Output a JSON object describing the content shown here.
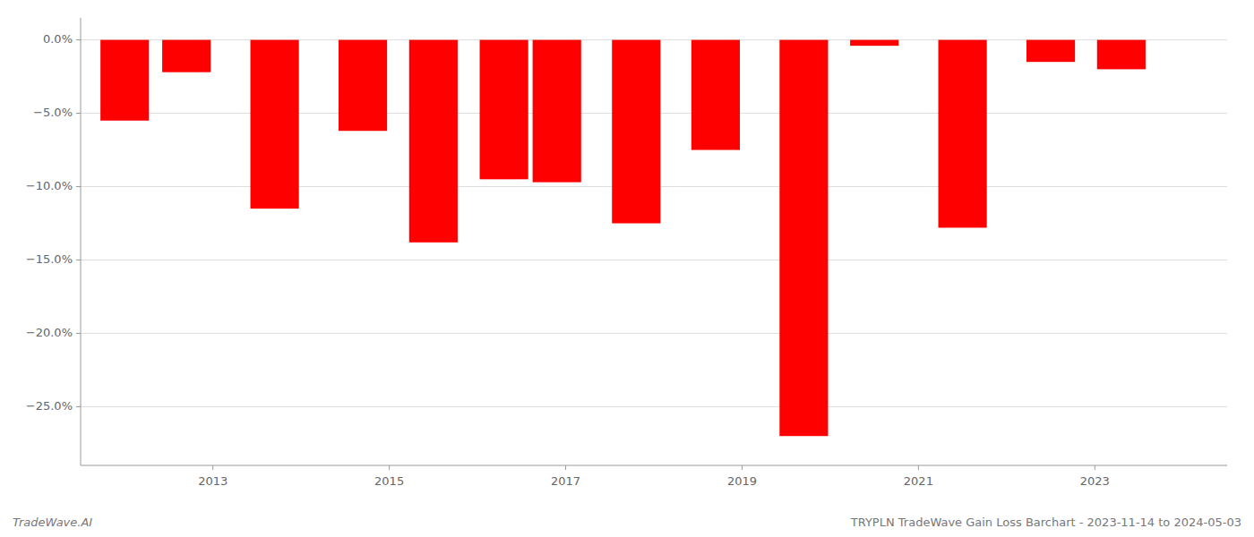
{
  "chart_data": {
    "type": "bar",
    "title": "TRYPLN TradeWave Gain Loss Barchart - 2023-11-14 to 2024-05-03",
    "annotations": [
      "TradeWave.AI"
    ],
    "x": [
      2012,
      2012.7,
      2013.7,
      2014.7,
      2015.5,
      2016.3,
      2016.9,
      2017.8,
      2018.7,
      2019.7,
      2020.5,
      2021.5,
      2022.5,
      2023.3
    ],
    "values": [
      -5.5,
      -2.2,
      -11.5,
      -6.2,
      -13.8,
      -9.5,
      -9.7,
      -12.5,
      -7.5,
      -27.0,
      -0.4,
      -12.8,
      -1.5,
      -2.0
    ],
    "color": "#ff0000",
    "xlim": [
      2011.5,
      2024.5
    ],
    "xticks": [
      2013,
      2015,
      2017,
      2019,
      2021,
      2023
    ],
    "ylim": [
      -29.0,
      1.5
    ],
    "yticks": [
      {
        "value": 0.0,
        "label": "0.0%"
      },
      {
        "value": -5.0,
        "label": "−5.0%"
      },
      {
        "value": -10.0,
        "label": "−10.0%"
      },
      {
        "value": -15.0,
        "label": "−15.0%"
      },
      {
        "value": -20.0,
        "label": "−20.0%"
      },
      {
        "value": -25.0,
        "label": "−25.0%"
      }
    ],
    "grid": true
  }
}
